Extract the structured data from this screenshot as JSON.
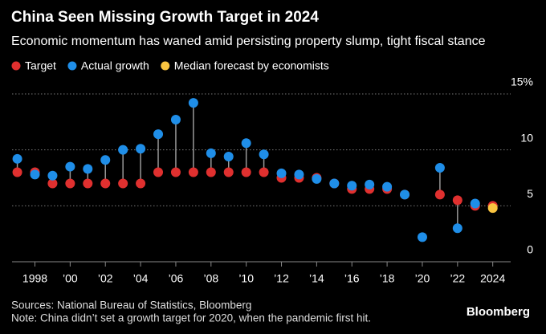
{
  "chart_data": {
    "type": "dot",
    "title": "China Seen Missing Growth Target in 2024",
    "subtitle": "Economic momentum has waned amid persisting property slump, tight fiscal stance",
    "x": [
      1997,
      1998,
      1999,
      2000,
      2001,
      2002,
      2003,
      2004,
      2005,
      2006,
      2007,
      2008,
      2009,
      2010,
      2011,
      2012,
      2013,
      2014,
      2015,
      2016,
      2017,
      2018,
      2019,
      2020,
      2021,
      2022,
      2023,
      2024
    ],
    "series": [
      {
        "name": "Target",
        "color": "#e0302f",
        "values": [
          8,
          8,
          7,
          7,
          7,
          7,
          7,
          7,
          8,
          8,
          8,
          8,
          8,
          8,
          8,
          7.5,
          7.5,
          7.5,
          7,
          6.5,
          6.5,
          6.5,
          6,
          null,
          6,
          5.5,
          5,
          5
        ]
      },
      {
        "name": "Actual growth",
        "color": "#1f8ee8",
        "values": [
          9.2,
          7.8,
          7.7,
          8.5,
          8.3,
          9.1,
          10,
          10.1,
          11.4,
          12.7,
          14.2,
          9.7,
          9.4,
          10.6,
          9.6,
          7.9,
          7.8,
          7.4,
          7,
          6.8,
          6.9,
          6.7,
          6,
          2.2,
          8.4,
          3,
          5.2,
          null
        ]
      },
      {
        "name": "Median forecast by economists",
        "color": "#f9c440",
        "values": [
          null,
          null,
          null,
          null,
          null,
          null,
          null,
          null,
          null,
          null,
          null,
          null,
          null,
          null,
          null,
          null,
          null,
          null,
          null,
          null,
          null,
          null,
          null,
          null,
          null,
          null,
          null,
          4.8
        ]
      }
    ],
    "xlim": [
      1996.7,
      2025.2
    ],
    "xticks": [
      {
        "value": 1998,
        "label": "1998"
      },
      {
        "value": 2000,
        "label": "’00"
      },
      {
        "value": 2002,
        "label": "’02"
      },
      {
        "value": 2004,
        "label": "’04"
      },
      {
        "value": 2006,
        "label": "’06"
      },
      {
        "value": 2008,
        "label": "’08"
      },
      {
        "value": 2010,
        "label": "’10"
      },
      {
        "value": 2012,
        "label": "’12"
      },
      {
        "value": 2014,
        "label": "’14"
      },
      {
        "value": 2016,
        "label": "’16"
      },
      {
        "value": 2018,
        "label": "’18"
      },
      {
        "value": 2020,
        "label": "’20"
      },
      {
        "value": 2022,
        "label": "’22"
      },
      2024
    ],
    "ylim": [
      0,
      15
    ],
    "yticks": [
      0,
      5,
      10,
      {
        "value": 15,
        "label": "15%"
      }
    ],
    "grid": true,
    "source": "Sources: National Bureau of Statistics, Bloomberg",
    "note": "Note: China didn’t set a growth target for 2020, when the pandemic first hit.",
    "brand": "Bloomberg"
  }
}
